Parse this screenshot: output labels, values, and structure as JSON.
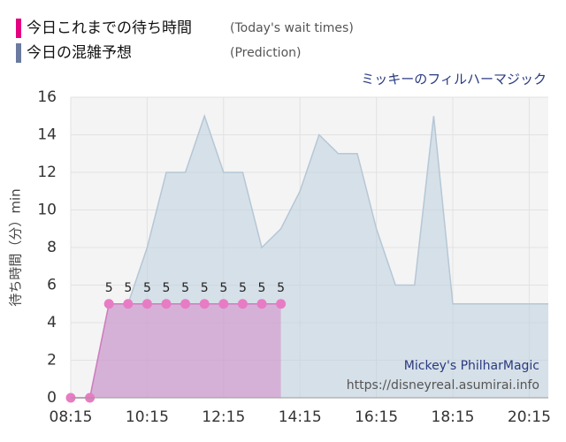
{
  "chart_data": {
    "type": "area",
    "subtitle": "ミッキーのフィルハーマジック",
    "y_label": "待ち時間（分）min",
    "watermark": [
      "Mickey's PhilharMagic",
      "https://disneyreal.asumirai.info"
    ],
    "xlim": [
      8.25,
      20.75
    ],
    "xticks": [
      {
        "value": 8.25,
        "label": "08:15"
      },
      {
        "value": 10.25,
        "label": "10:15"
      },
      {
        "value": 12.25,
        "label": "12:15"
      },
      {
        "value": 14.25,
        "label": "14:15"
      },
      {
        "value": 16.25,
        "label": "16:15"
      },
      {
        "value": 18.25,
        "label": "18:15"
      },
      {
        "value": 20.25,
        "label": "20:15"
      }
    ],
    "ylim": [
      0,
      16
    ],
    "yticks": [
      0,
      2,
      4,
      6,
      8,
      10,
      12,
      14,
      16
    ],
    "grid": true,
    "series": [
      {
        "name": "今日これまでの待ち時間",
        "subname": "(Today's wait times)",
        "color": "#e4007f",
        "x": [
          8.25,
          8.75,
          9.25,
          9.75,
          10.25,
          10.75,
          11.25,
          11.75,
          12.25,
          12.75,
          13.25,
          13.75
        ],
        "values": [
          0,
          0,
          5,
          5,
          5,
          5,
          5,
          5,
          5,
          5,
          5,
          5
        ]
      },
      {
        "name": "今日の混雑予想",
        "subname": "(Prediction)",
        "color": "#6b7a9f",
        "x": [
          8.25,
          8.75,
          9.25,
          9.75,
          10.25,
          10.75,
          11.25,
          11.75,
          12.25,
          12.75,
          13.25,
          13.75,
          14.25,
          14.75,
          15.25,
          15.75,
          16.25,
          16.75,
          17.25,
          17.75,
          18.25,
          18.75,
          19.25,
          19.75,
          20.25,
          20.75
        ],
        "values": [
          0,
          0,
          5,
          5,
          8,
          12,
          12,
          15,
          12,
          12,
          8,
          9,
          11,
          14,
          13,
          13,
          9,
          6,
          6,
          15,
          5,
          5,
          5,
          5,
          5,
          5
        ]
      }
    ]
  }
}
